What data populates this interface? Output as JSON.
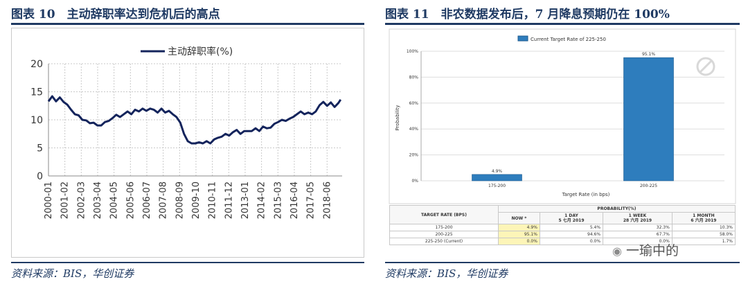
{
  "left_panel": {
    "title": "图表 10　主动辞职率达到危机后的高点",
    "source": "资料来源：BIS，华创证券"
  },
  "right_panel": {
    "title": "图表 11　非农数据发布后，7 月降息预期仍在 100%",
    "source": "资料来源：BIS，华创证券"
  },
  "chart_data": [
    {
      "type": "line",
      "title": "",
      "legend": {
        "position": "top-center",
        "entries": [
          "主动辞职率(%)"
        ]
      },
      "series_color": "#14245c",
      "grid": true,
      "ylim": [
        0,
        20
      ],
      "yticks": [
        0,
        5,
        10,
        15,
        20
      ],
      "xlim": [
        2000.0,
        2019.5
      ],
      "xtick_labels": [
        "2000-01",
        "2001-02",
        "2002-03",
        "2003-04",
        "2004-05",
        "2005-06",
        "2006-07",
        "2007-08",
        "2008-09",
        "2009-10",
        "2010-11",
        "2011-12",
        "2013-01",
        "2014-02",
        "2015-03",
        "2016-04",
        "2017-05",
        "2018-06"
      ],
      "series": [
        {
          "name": "主动辞职率(%)",
          "x": [
            2000.0,
            2000.25,
            2000.5,
            2000.75,
            2001.0,
            2001.25,
            2001.5,
            2001.75,
            2002.0,
            2002.25,
            2002.5,
            2002.75,
            2003.0,
            2003.25,
            2003.5,
            2003.75,
            2004.0,
            2004.25,
            2004.5,
            2004.75,
            2005.0,
            2005.25,
            2005.5,
            2005.75,
            2006.0,
            2006.25,
            2006.5,
            2006.75,
            2007.0,
            2007.25,
            2007.5,
            2007.75,
            2008.0,
            2008.25,
            2008.5,
            2008.75,
            2009.0,
            2009.25,
            2009.5,
            2009.75,
            2010.0,
            2010.25,
            2010.5,
            2010.75,
            2011.0,
            2011.25,
            2011.5,
            2011.75,
            2012.0,
            2012.25,
            2012.5,
            2012.75,
            2013.0,
            2013.25,
            2013.5,
            2013.75,
            2014.0,
            2014.25,
            2014.5,
            2014.75,
            2015.0,
            2015.25,
            2015.5,
            2015.75,
            2016.0,
            2016.25,
            2016.5,
            2016.75,
            2017.0,
            2017.25,
            2017.5,
            2017.75,
            2018.0,
            2018.25,
            2018.5,
            2018.75,
            2019.0,
            2019.25,
            2019.4
          ],
          "values": [
            13.3,
            14.2,
            13.3,
            14.0,
            13.2,
            12.7,
            11.8,
            11.0,
            10.8,
            10.0,
            9.9,
            9.4,
            9.5,
            9.0,
            9.0,
            9.6,
            9.8,
            10.3,
            10.9,
            10.5,
            11.0,
            11.5,
            11.0,
            11.8,
            11.5,
            12.0,
            11.6,
            12.0,
            11.8,
            11.3,
            12.0,
            11.3,
            11.6,
            11.0,
            10.5,
            9.5,
            7.5,
            6.2,
            5.8,
            5.8,
            6.0,
            5.8,
            6.2,
            5.8,
            6.5,
            6.8,
            7.0,
            7.5,
            7.2,
            7.8,
            8.2,
            7.5,
            8.0,
            8.0,
            8.0,
            8.5,
            8.0,
            8.8,
            8.5,
            8.6,
            9.3,
            9.6,
            10.0,
            9.8,
            10.2,
            10.5,
            11.0,
            11.5,
            11.0,
            11.3,
            11.0,
            11.5,
            12.6,
            13.2,
            12.5,
            13.1,
            12.3,
            13.0,
            13.6
          ]
        }
      ]
    },
    {
      "type": "bar",
      "title": "Current Target Rate of 225-250",
      "legend": {
        "position": "top-center",
        "entries": [
          "Current Target Rate of 225-250"
        ]
      },
      "xlabel": "Target Rate (in bps)",
      "ylabel": "Probability",
      "ylim": [
        0,
        100
      ],
      "yticks": [
        0,
        20,
        40,
        60,
        80,
        100
      ],
      "ytick_labels": [
        "0%",
        "20%",
        "40%",
        "60%",
        "80%",
        "100%"
      ],
      "categories": [
        "175-200",
        "200-225"
      ],
      "values": [
        4.9,
        95.1
      ],
      "value_labels": [
        "4.9%",
        "95.1%"
      ],
      "color": "#2e7dbd"
    }
  ],
  "probability_table": {
    "col_target_header": "TARGET RATE (BPS)",
    "group_header": "PROBABILITY(%)",
    "col_headers": [
      "NOW *",
      "1 DAY\n5 七月 2019",
      "1 WEEK\n28 六月 2019",
      "1 MONTH\n6 六月 2019"
    ],
    "rows": [
      {
        "label": "175-200",
        "cells": [
          "4.9%",
          "5.4%",
          "32.3%",
          "10.3%"
        ]
      },
      {
        "label": "200-225",
        "cells": [
          "95.1%",
          "94.6%",
          "67.7%",
          "58.0%"
        ]
      },
      {
        "label": "225-250 (Current)",
        "cells": [
          "0.0%",
          "0.0%",
          "0.0%",
          "1.7%"
        ]
      }
    ]
  },
  "watermark_text": "一瑜中的"
}
